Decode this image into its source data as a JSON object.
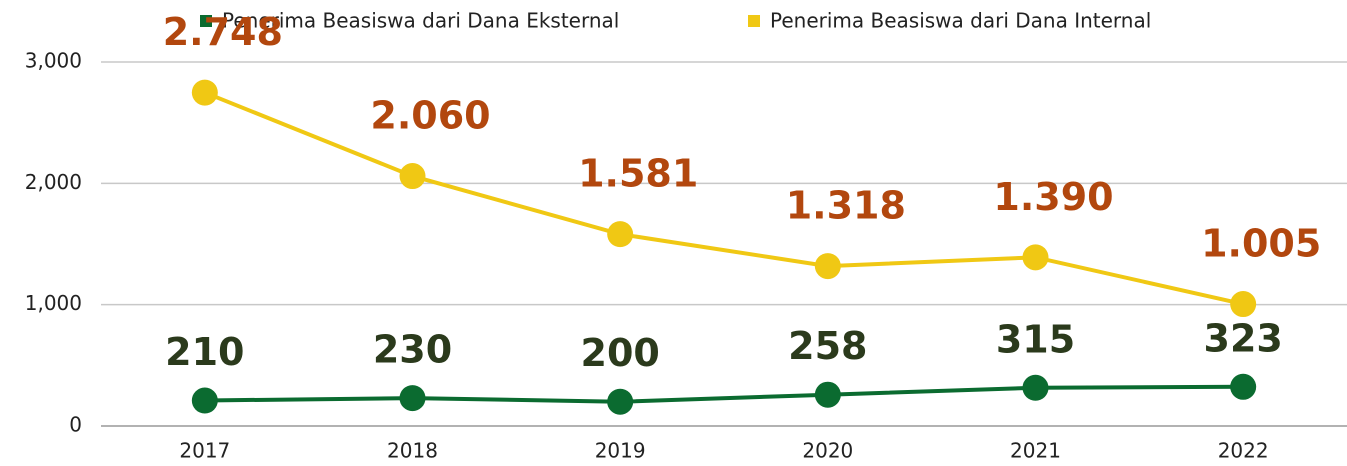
{
  "chart_data": {
    "type": "line",
    "categories": [
      "2017",
      "2018",
      "2019",
      "2020",
      "2021",
      "2022"
    ],
    "series": [
      {
        "name": "Penerima Beasiswa dari Dana Eksternal",
        "color": "#0b6b30",
        "label_color": "#2b3a1c",
        "values": [
          210,
          230,
          200,
          258,
          315,
          323
        ]
      },
      {
        "name": "Penerima Beasiswa dari Dana Internal",
        "color": "#f0c814",
        "label_color": "#b2470e",
        "values": [
          2748,
          2060,
          1581,
          1318,
          1390,
          1005
        ],
        "value_labels": [
          "2.748",
          "2.060",
          "1.581",
          "1.318",
          "1.390",
          "1.005"
        ]
      }
    ],
    "ylim": [
      0,
      3000
    ],
    "yticks": [
      0,
      {
        "value": 1000,
        "label": "1,000"
      },
      {
        "value": 2000,
        "label": "2,000"
      },
      {
        "value": 3000,
        "label": "3,000"
      }
    ],
    "grid": true,
    "legend": "top"
  }
}
